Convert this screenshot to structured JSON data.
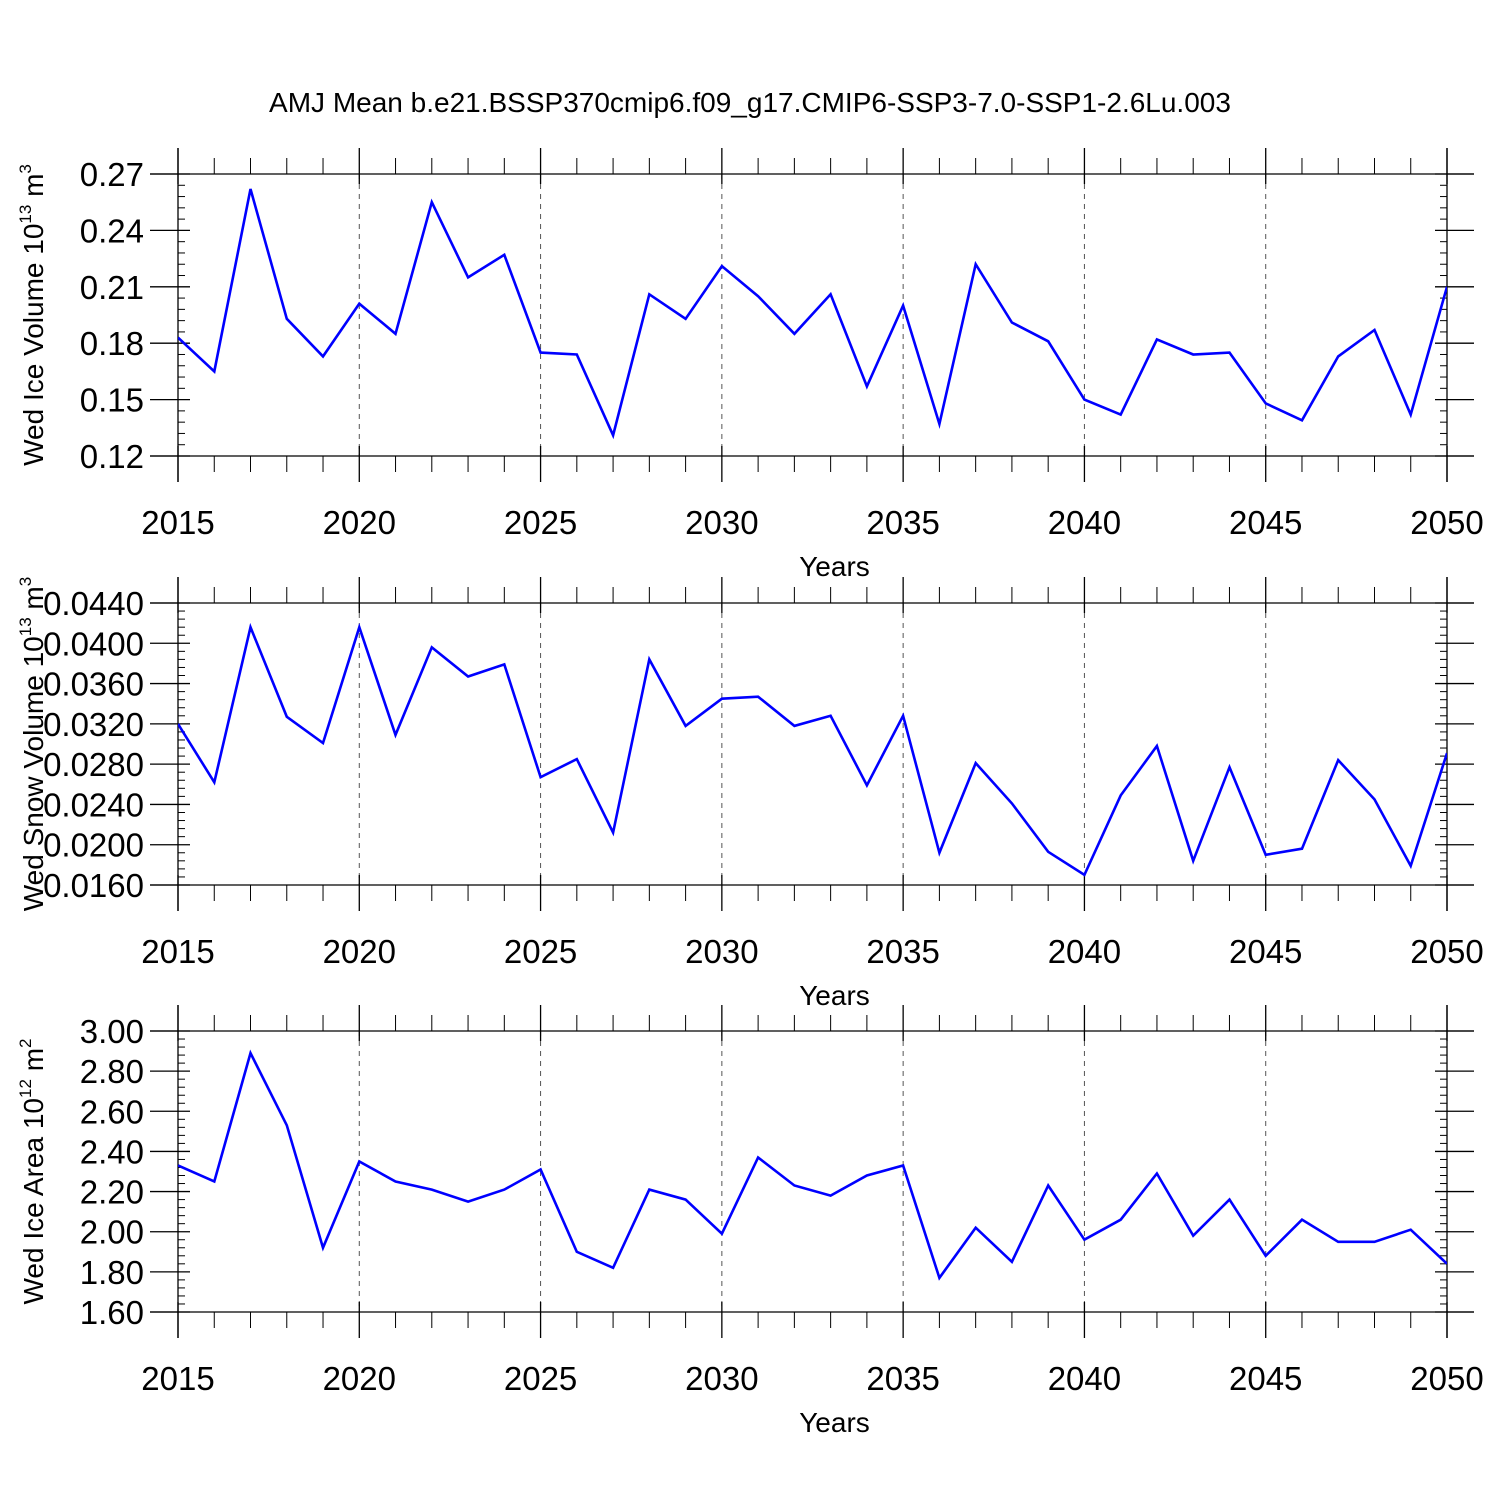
{
  "figure": {
    "title": "AMJ Mean b.e21.BSSP370cmip6.f09_g17.CMIP6-SSP3-7.0-SSP1-2.6Lu.003",
    "line_color": "#0000ff",
    "grid_color": "#555555"
  },
  "chart_data": [
    {
      "type": "line",
      "xlabel": "Years",
      "ylabel": {
        "text": "Wed Ice Volume 10",
        "exp": "13",
        "unit": " m",
        "unit_exp": "3"
      },
      "xlim": [
        2015,
        2050
      ],
      "ylim": [
        0.12,
        0.27
      ],
      "xticks": [
        2015,
        2020,
        2025,
        2030,
        2035,
        2040,
        2045,
        2050
      ],
      "yticks": [
        "0.12",
        "0.15",
        "0.18",
        "0.21",
        "0.24",
        "0.27"
      ],
      "grid": "x-dashed",
      "x": [
        2015,
        2016,
        2017,
        2018,
        2019,
        2020,
        2021,
        2022,
        2023,
        2024,
        2025,
        2026,
        2027,
        2028,
        2029,
        2030,
        2031,
        2032,
        2033,
        2034,
        2035,
        2036,
        2037,
        2038,
        2039,
        2040,
        2041,
        2042,
        2043,
        2044,
        2045,
        2046,
        2047,
        2048,
        2049,
        2050
      ],
      "values": [
        0.183,
        0.165,
        0.262,
        0.193,
        0.173,
        0.201,
        0.185,
        0.255,
        0.215,
        0.227,
        0.175,
        0.174,
        0.131,
        0.206,
        0.193,
        0.221,
        0.205,
        0.185,
        0.206,
        0.157,
        0.2,
        0.137,
        0.222,
        0.191,
        0.181,
        0.15,
        0.142,
        0.182,
        0.174,
        0.175,
        0.148,
        0.139,
        0.173,
        0.187,
        0.142,
        0.21
      ]
    },
    {
      "type": "line",
      "xlabel": "Years",
      "ylabel": {
        "text": "Wed Snow Volume 10",
        "exp": "13",
        "unit": " m",
        "unit_exp": "3"
      },
      "xlim": [
        2015,
        2050
      ],
      "ylim": [
        0.016,
        0.044
      ],
      "xticks": [
        2015,
        2020,
        2025,
        2030,
        2035,
        2040,
        2045,
        2050
      ],
      "yticks": [
        "0.0160",
        "0.0200",
        "0.0240",
        "0.0280",
        "0.0320",
        "0.0360",
        "0.0400",
        "0.0440"
      ],
      "grid": "x-dashed",
      "x": [
        2015,
        2016,
        2017,
        2018,
        2019,
        2020,
        2021,
        2022,
        2023,
        2024,
        2025,
        2026,
        2027,
        2028,
        2029,
        2030,
        2031,
        2032,
        2033,
        2034,
        2035,
        2036,
        2037,
        2038,
        2039,
        2040,
        2041,
        2042,
        2043,
        2044,
        2045,
        2046,
        2047,
        2048,
        2049,
        2050
      ],
      "values": [
        0.032,
        0.0262,
        0.0416,
        0.0327,
        0.0301,
        0.0416,
        0.0309,
        0.0396,
        0.0367,
        0.0379,
        0.0267,
        0.0285,
        0.0212,
        0.0384,
        0.0318,
        0.0345,
        0.0347,
        0.0318,
        0.0328,
        0.0259,
        0.0328,
        0.0192,
        0.0281,
        0.0241,
        0.0193,
        0.017,
        0.0249,
        0.0298,
        0.0184,
        0.0277,
        0.019,
        0.0196,
        0.0284,
        0.0245,
        0.0179,
        0.0291
      ]
    },
    {
      "type": "line",
      "xlabel": "Years",
      "ylabel": {
        "text": "Wed Ice Area 10",
        "exp": "12",
        "unit": " m",
        "unit_exp": "2"
      },
      "xlim": [
        2015,
        2050
      ],
      "ylim": [
        1.6,
        3.0
      ],
      "xticks": [
        2015,
        2020,
        2025,
        2030,
        2035,
        2040,
        2045,
        2050
      ],
      "yticks": [
        "1.60",
        "1.80",
        "2.00",
        "2.20",
        "2.40",
        "2.60",
        "2.80",
        "3.00"
      ],
      "grid": "x-dashed",
      "x": [
        2015,
        2016,
        2017,
        2018,
        2019,
        2020,
        2021,
        2022,
        2023,
        2024,
        2025,
        2026,
        2027,
        2028,
        2029,
        2030,
        2031,
        2032,
        2033,
        2034,
        2035,
        2036,
        2037,
        2038,
        2039,
        2040,
        2041,
        2042,
        2043,
        2044,
        2045,
        2046,
        2047,
        2048,
        2049,
        2050
      ],
      "values": [
        2.33,
        2.25,
        2.89,
        2.53,
        1.92,
        2.35,
        2.25,
        2.21,
        2.15,
        2.21,
        2.31,
        1.9,
        1.82,
        2.21,
        2.16,
        1.99,
        2.37,
        2.23,
        2.18,
        2.28,
        2.33,
        1.77,
        2.02,
        1.85,
        2.23,
        1.96,
        2.06,
        2.29,
        1.98,
        2.16,
        1.88,
        2.06,
        1.95,
        1.95,
        2.01,
        1.84
      ]
    }
  ]
}
